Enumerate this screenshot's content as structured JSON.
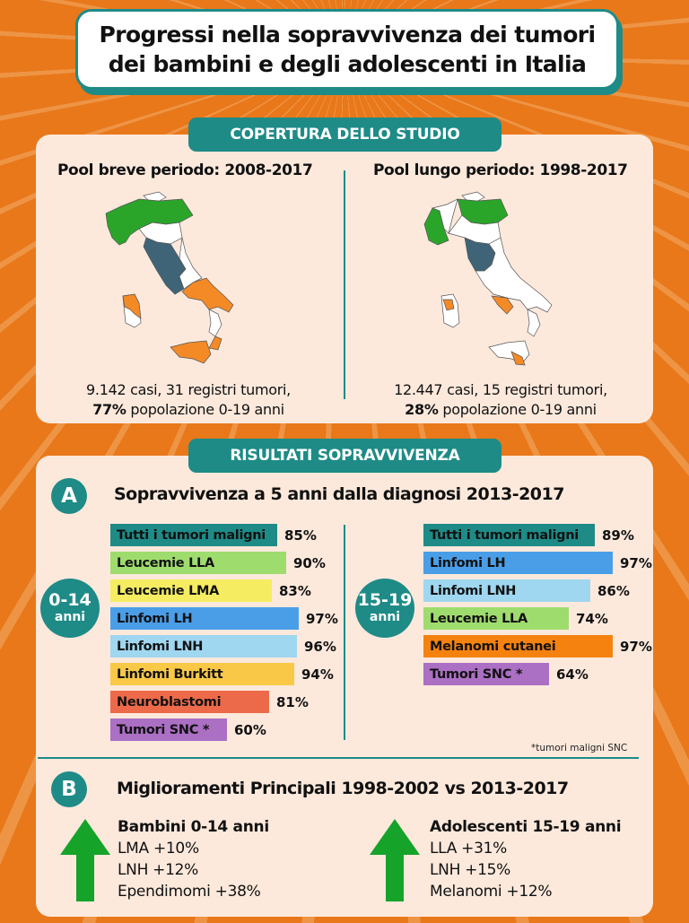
{
  "header": {
    "title_line1": "Progressi nella sopravvivenza dei tumori",
    "title_line2": "dei bambini e degli adolescenti in Italia"
  },
  "coverage": {
    "tab_label": "COPERTURA DELLO STUDIO",
    "short_pool": {
      "title": "Pool breve periodo: 2008-2017",
      "caption_line1": "9.142 casi, 31 registri tumori,",
      "caption_pct": "77%",
      "caption_line2_rest": " popolazione 0-19 anni"
    },
    "long_pool": {
      "title": "Pool lungo periodo: 1998-2017",
      "caption_line1": "12.447 casi, 15 registri tumori,",
      "caption_pct": "28%",
      "caption_line2_rest": " popolazione 0-19 anni"
    },
    "map_colors": {
      "north": "#2aa52a",
      "center": "#3f6478",
      "south": "#f48a26",
      "uncovered": "#ffffff"
    }
  },
  "results": {
    "tab_label": "RISULTATI SOPRAVVIVENZA",
    "section_a": {
      "letter": "A",
      "title": "Sopravvivenza a 5 anni dalla diagnosi 2013-2017",
      "group_children": {
        "age": "0-14",
        "unit": "anni"
      },
      "group_teens": {
        "age": "15-19",
        "unit": "anni"
      },
      "footnote": "*tumori maligni SNC"
    },
    "section_b": {
      "letter": "B",
      "title": "Miglioramenti Principali 1998-2002 vs 2013-2017",
      "children": {
        "heading": "Bambini 0-14 anni",
        "items": [
          "LMA +10%",
          "LNH +12%",
          "Ependimomi +38%"
        ]
      },
      "teens": {
        "heading": "Adolescenti 15-19 anni",
        "items": [
          "LLA +31%",
          "LNH +15%",
          "Melanomi +12%"
        ]
      }
    }
  },
  "chart_data": [
    {
      "type": "bar",
      "title": "Sopravvivenza a 5 anni dalla diagnosi 2013-2017 — 0-14 anni",
      "orientation": "horizontal",
      "categories": [
        "Tutti i tumori maligni",
        "Leucemie LLA",
        "Leucemie LMA",
        "Linfomi LH",
        "Linfomi LNH",
        "Linfomi Burkitt",
        "Neuroblastomi",
        "Tumori SNC *"
      ],
      "values": [
        85,
        90,
        83,
        97,
        96,
        94,
        81,
        60
      ],
      "labels": [
        "85%",
        "90%",
        "83%",
        "97%",
        "96%",
        "94%",
        "81%",
        "60%"
      ],
      "colors": [
        "#1e8b87",
        "#9fdc6e",
        "#f5ec62",
        "#4a9ee8",
        "#9fd6f0",
        "#f9c846",
        "#ec6a4a",
        "#ab6fc4"
      ],
      "unit": "%"
    },
    {
      "type": "bar",
      "title": "Sopravvivenza a 5 anni dalla diagnosi 2013-2017 — 15-19 anni",
      "orientation": "horizontal",
      "categories": [
        "Tutti i tumori maligni",
        "Linfomi LH",
        "Linfomi LNH",
        "Leucemie LLA",
        "Melanomi cutanei",
        "Tumori SNC *"
      ],
      "values": [
        89,
        97,
        86,
        74,
        97,
        64
      ],
      "labels": [
        "89%",
        "97%",
        "86%",
        "74%",
        "97%",
        "64%"
      ],
      "colors": [
        "#1e8b87",
        "#4a9ee8",
        "#9fd6f0",
        "#9fdc6e",
        "#f5820f",
        "#ab6fc4"
      ],
      "unit": "%"
    }
  ]
}
